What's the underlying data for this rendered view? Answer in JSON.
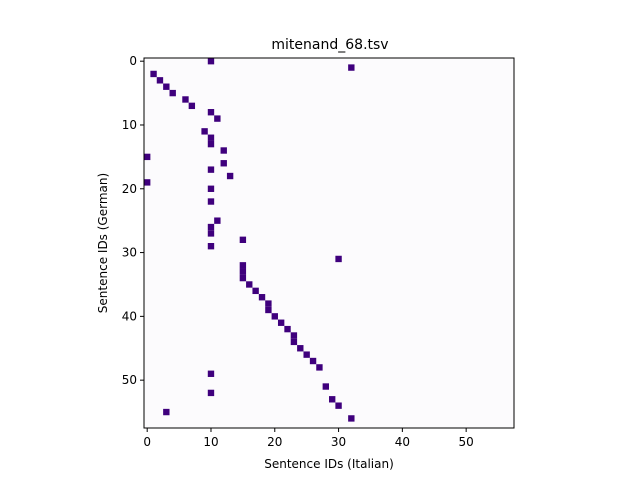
{
  "chart_data": {
    "type": "heatmap",
    "title": "mitenand_68.tsv",
    "xlabel": "Sentence IDs (Italian)",
    "ylabel": "Sentence IDs (German)",
    "xlim": [
      -0.5,
      57.5
    ],
    "ylim": [
      57.5,
      -0.5
    ],
    "xticks": [
      0,
      10,
      20,
      30,
      40,
      50
    ],
    "yticks": [
      0,
      10,
      20,
      30,
      40,
      50
    ],
    "background_color": "#fcfbfd",
    "mark_color": "#3f007d",
    "alignments": [
      [
        10,
        0
      ],
      [
        32,
        1
      ],
      [
        1,
        2
      ],
      [
        2,
        3
      ],
      [
        3,
        4
      ],
      [
        4,
        5
      ],
      [
        6,
        6
      ],
      [
        7,
        7
      ],
      [
        10,
        8
      ],
      [
        11,
        9
      ],
      [
        9,
        11
      ],
      [
        10,
        12
      ],
      [
        10,
        13
      ],
      [
        12,
        14
      ],
      [
        0,
        15
      ],
      [
        12,
        16
      ],
      [
        10,
        17
      ],
      [
        13,
        18
      ],
      [
        0,
        19
      ],
      [
        10,
        20
      ],
      [
        10,
        22
      ],
      [
        11,
        25
      ],
      [
        10,
        26
      ],
      [
        10,
        27
      ],
      [
        15,
        28
      ],
      [
        10,
        29
      ],
      [
        30,
        31
      ],
      [
        15,
        32
      ],
      [
        15,
        33
      ],
      [
        15,
        34
      ],
      [
        16,
        35
      ],
      [
        17,
        36
      ],
      [
        18,
        37
      ],
      [
        19,
        38
      ],
      [
        19,
        39
      ],
      [
        20,
        40
      ],
      [
        21,
        41
      ],
      [
        22,
        42
      ],
      [
        23,
        43
      ],
      [
        23,
        44
      ],
      [
        24,
        45
      ],
      [
        25,
        46
      ],
      [
        26,
        47
      ],
      [
        27,
        48
      ],
      [
        10,
        49
      ],
      [
        28,
        51
      ],
      [
        10,
        52
      ],
      [
        29,
        53
      ],
      [
        30,
        54
      ],
      [
        3,
        55
      ],
      [
        32,
        56
      ]
    ]
  }
}
